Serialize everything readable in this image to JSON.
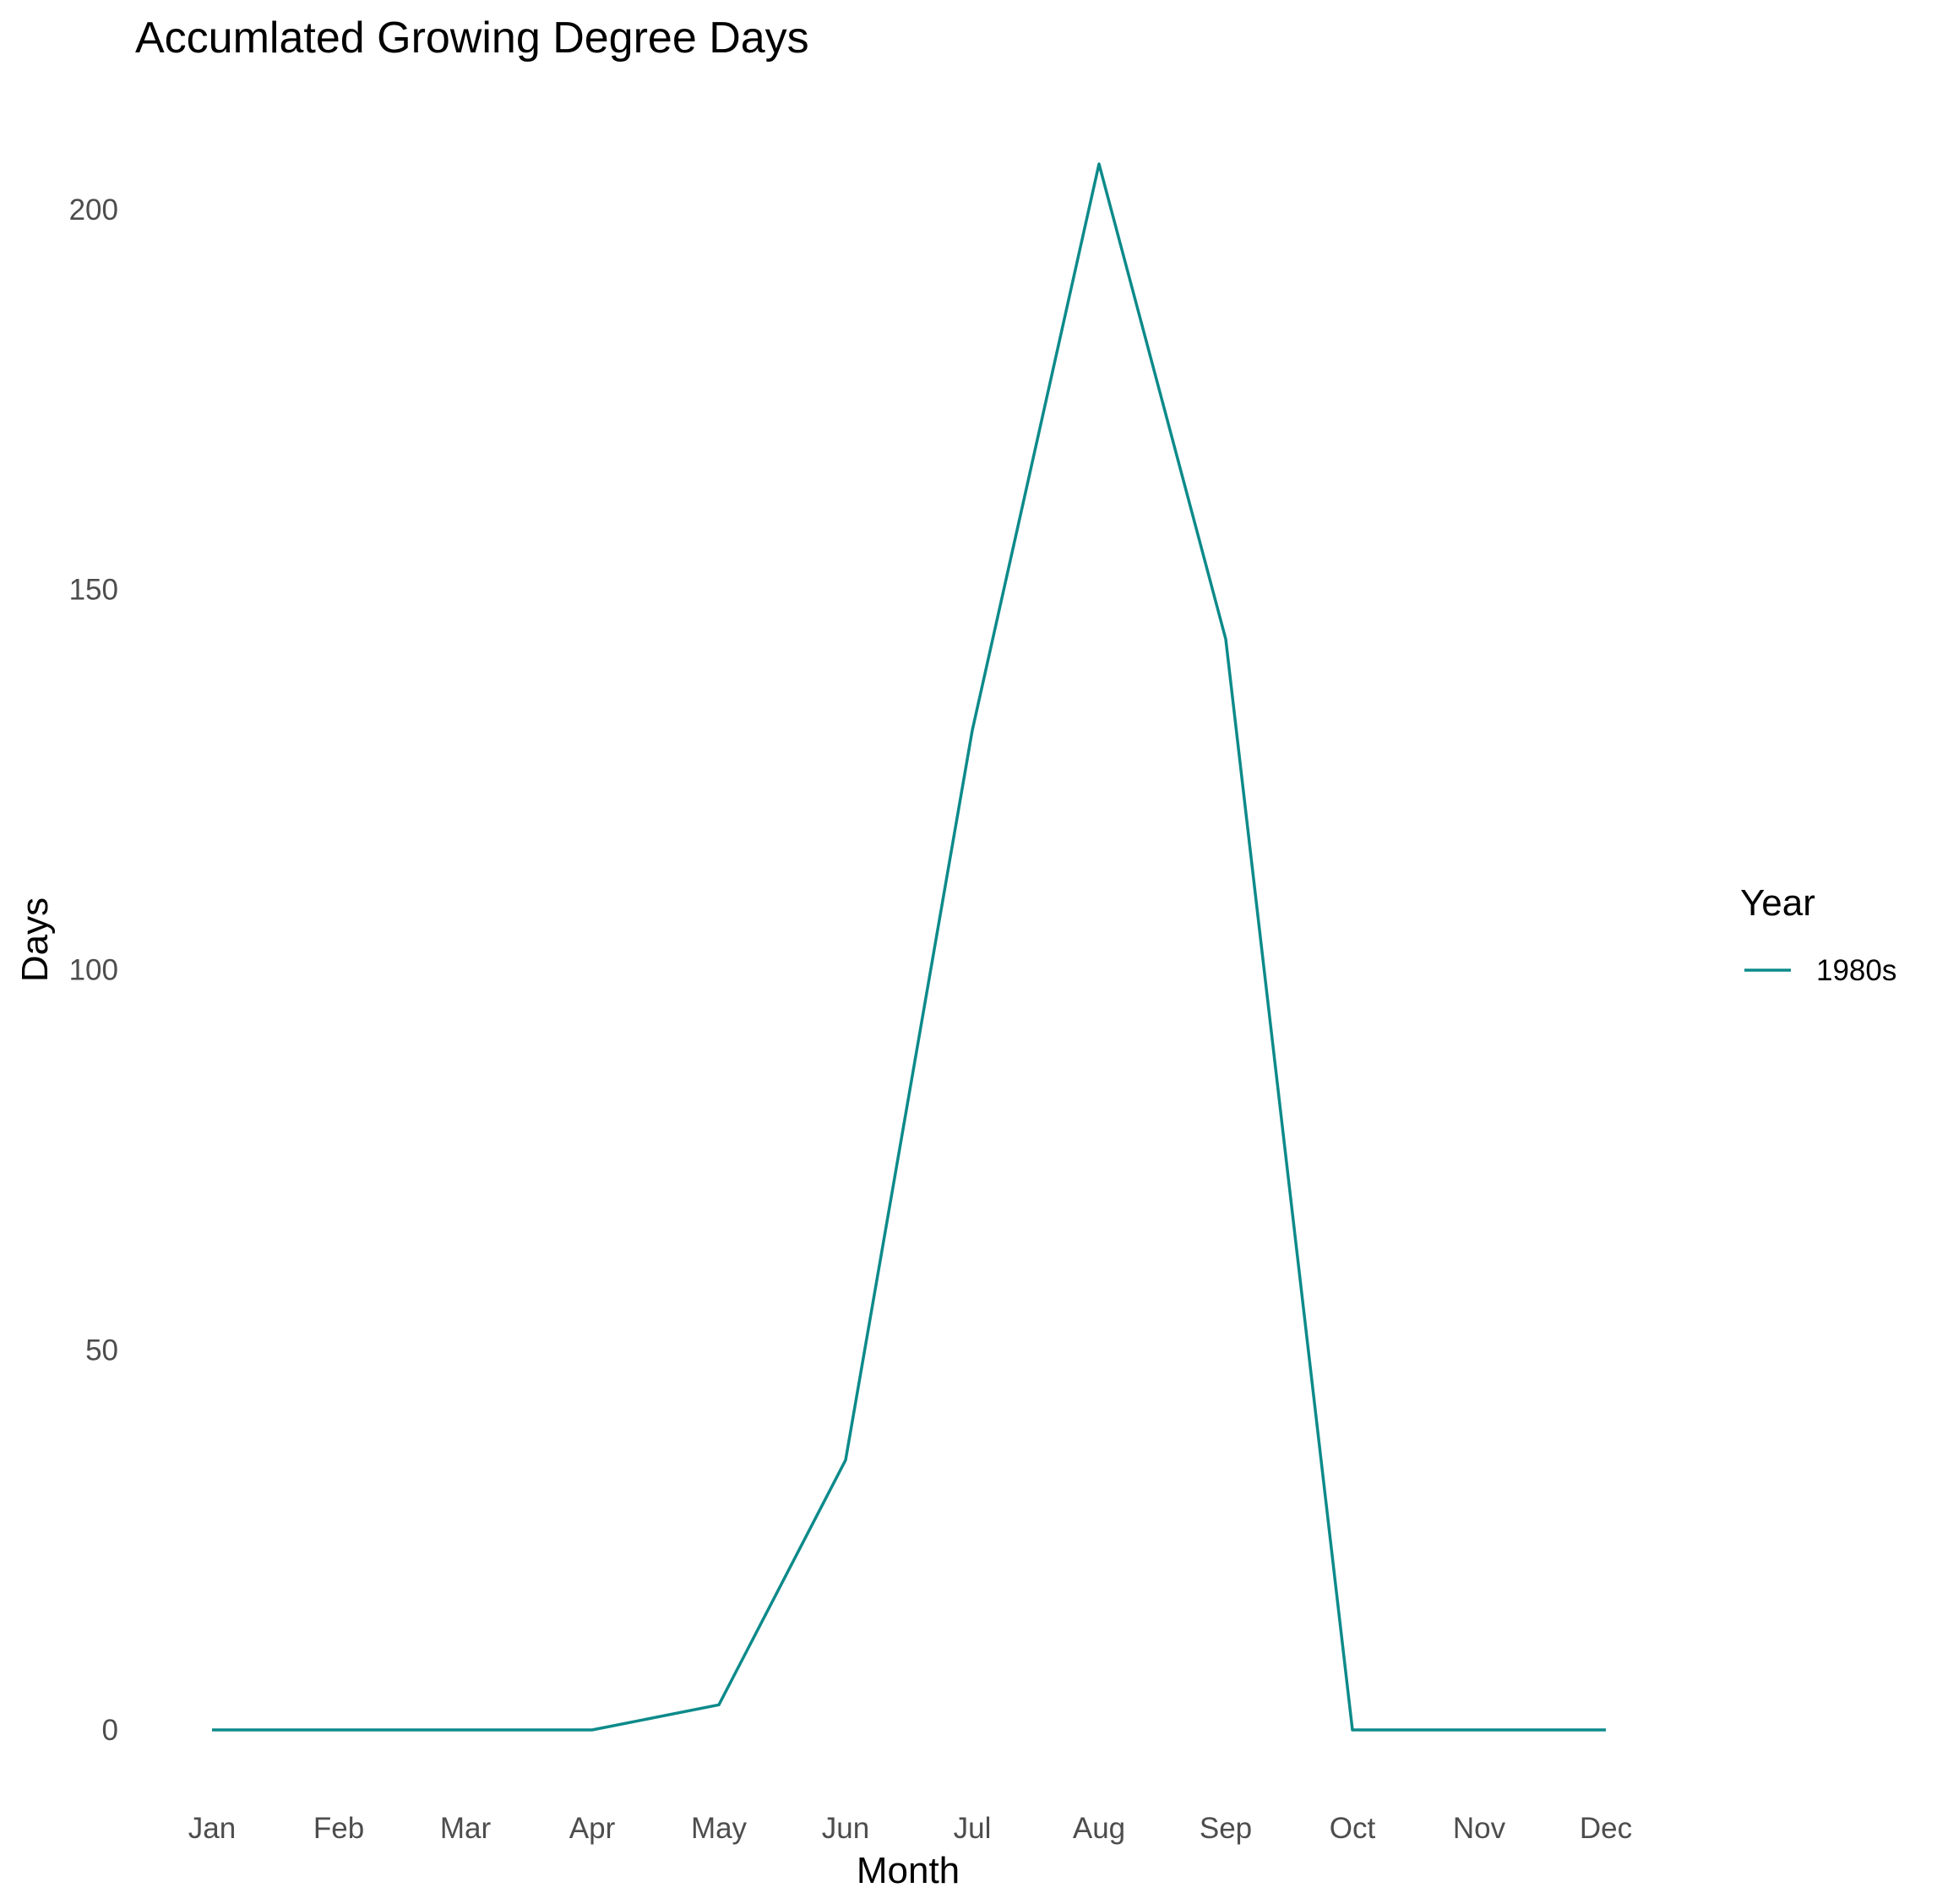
{
  "chart_data": {
    "type": "line",
    "title": "Accumlated Growing Degree Days",
    "xlabel": "Month",
    "ylabel": "Days",
    "categories": [
      "Jan",
      "Feb",
      "Mar",
      "Apr",
      "May",
      "Jun",
      "Jul",
      "Aug",
      "Sep",
      "Oct",
      "Nov",
      "Dec"
    ],
    "ylim": [
      -7,
      212
    ],
    "yticks": [
      0,
      50,
      100,
      150,
      200
    ],
    "ytick_labels": [
      "0",
      "50",
      "100",
      "150",
      "200"
    ],
    "grid": false,
    "legend": {
      "title": "Year",
      "position": "right"
    },
    "series": [
      {
        "name": "1980s",
        "color": "#0d8a8a",
        "values": [
          0,
          0,
          0,
          0,
          3.3,
          35.5,
          131.5,
          206,
          143.5,
          0,
          0,
          0
        ]
      }
    ]
  }
}
